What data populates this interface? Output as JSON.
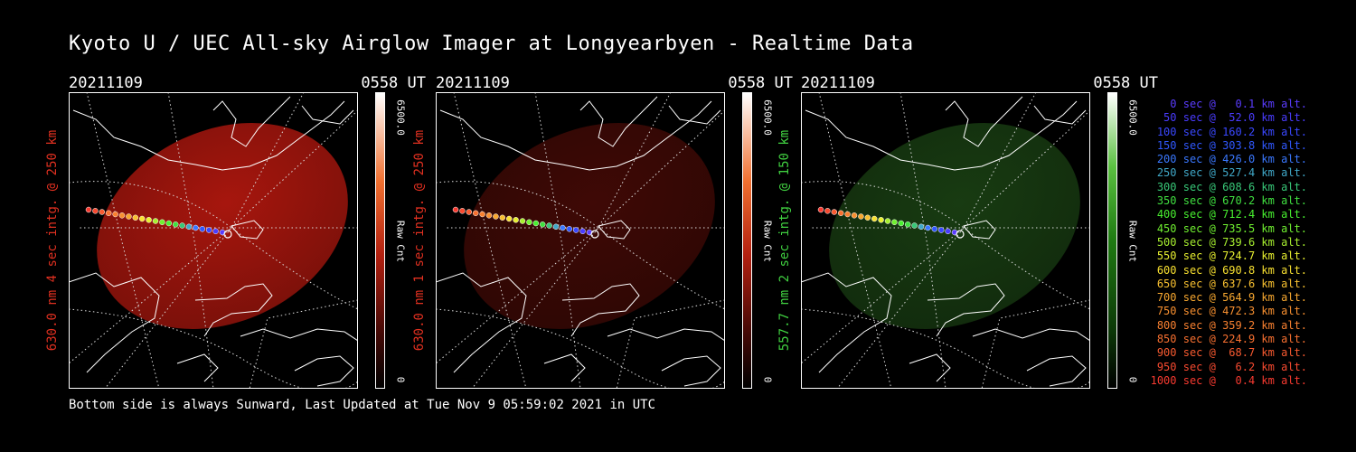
{
  "title": "Kyoto U / UEC All-sky Airglow Imager at Longyearbyen - Realtime Data",
  "footer": "Bottom side is always Sunward, Last Updated at Tue Nov  9 05:59:02 2021 in UTC",
  "panels": [
    {
      "date": "20211109",
      "time": "0558 UT",
      "ylabel": "630.0 nm 4 sec intg. @ 250 km",
      "ylabel_color": "#e03020",
      "cbar_max": "6500.0",
      "cbar_min": "0",
      "cbar_unit": "Raw Cnt",
      "colormap": "red",
      "glow_color": "#c41a10",
      "glow_opacity": 0.85
    },
    {
      "date": "20211109",
      "time": "0558 UT",
      "ylabel": "630.0 nm 1 sec intg. @ 250 km",
      "ylabel_color": "#e03020",
      "cbar_max": "6500.0",
      "cbar_min": "0",
      "cbar_unit": "Raw Cnt",
      "colormap": "red",
      "glow_color": "#5a0d08",
      "glow_opacity": 0.7
    },
    {
      "date": "20211109",
      "time": "0558 UT",
      "ylabel": "557.7 nm 2 sec intg. @ 150 km",
      "ylabel_color": "#40d040",
      "cbar_max": "6500.0",
      "cbar_min": "0",
      "cbar_unit": "Raw Cnt",
      "colormap": "green",
      "glow_color": "#1e4a16",
      "glow_opacity": 0.8
    }
  ],
  "legend": [
    {
      "text": "0 sec @   0.1 km alt.",
      "color": "#5a3cff"
    },
    {
      "text": "50 sec @  52.0 km alt.",
      "color": "#4a3cff"
    },
    {
      "text": "100 sec @ 160.2 km alt.",
      "color": "#3a48ff"
    },
    {
      "text": "150 sec @ 303.8 km alt.",
      "color": "#3058ff"
    },
    {
      "text": "200 sec @ 426.0 km alt.",
      "color": "#3a78ff"
    },
    {
      "text": "250 sec @ 527.4 km alt.",
      "color": "#40a8c8"
    },
    {
      "text": "300 sec @ 608.6 km alt.",
      "color": "#38c878"
    },
    {
      "text": "350 sec @ 670.2 km alt.",
      "color": "#40e040"
    },
    {
      "text": "400 sec @ 712.4 km alt.",
      "color": "#48f030"
    },
    {
      "text": "450 sec @ 735.5 km alt.",
      "color": "#70f030"
    },
    {
      "text": "500 sec @ 739.6 km alt.",
      "color": "#a8f030"
    },
    {
      "text": "550 sec @ 724.7 km alt.",
      "color": "#e8f030"
    },
    {
      "text": "600 sec @ 690.8 km alt.",
      "color": "#f8e030"
    },
    {
      "text": "650 sec @ 637.6 km alt.",
      "color": "#f8c030"
    },
    {
      "text": "700 sec @ 564.9 km alt.",
      "color": "#f8a830"
    },
    {
      "text": "750 sec @ 472.3 km alt.",
      "color": "#f89030"
    },
    {
      "text": "800 sec @ 359.2 km alt.",
      "color": "#f88030"
    },
    {
      "text": "850 sec @ 224.9 km alt.",
      "color": "#f87030"
    },
    {
      "text": "900 sec @  68.7 km alt.",
      "color": "#f85a30"
    },
    {
      "text": "950 sec @   6.2 km alt.",
      "color": "#f84a30"
    },
    {
      "text": "1000 sec @   0.4 km alt.",
      "color": "#f83a30"
    }
  ]
}
